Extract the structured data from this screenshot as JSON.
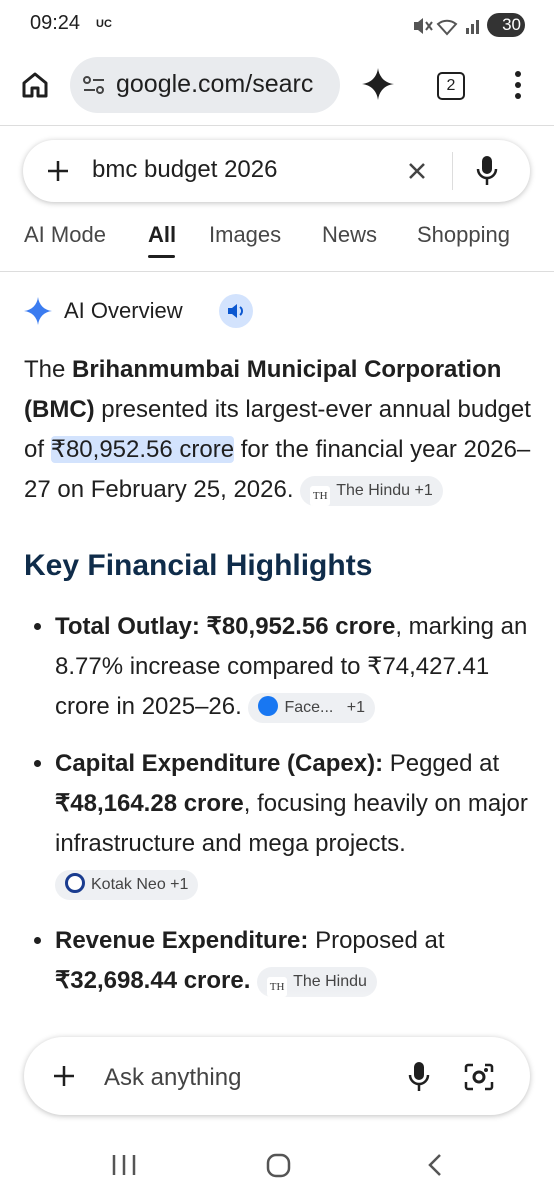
{
  "status_bar": {
    "time": "09:24",
    "carrier": "UC",
    "battery": "30"
  },
  "browser": {
    "url": "google.com/searc",
    "tab_count": "2"
  },
  "search": {
    "query": "bmc budget 2026",
    "tabs": [
      "AI Mode",
      "All",
      "Images",
      "News",
      "Shopping"
    ]
  },
  "ai_overview": {
    "label": "AI Overview",
    "paragraph": [
      "The ",
      "Brihanmumbai Municipal Corporation (BMC)",
      " presented its largest-ever annual budget of ",
      "₹80,952.56 crore",
      " for the financial year 2026–27 on February 25, 2026."
    ],
    "source": {
      "name": "The Hindu",
      "more": "+1"
    },
    "heading": "Key Financial Highlights",
    "bullets": [
      {
        "parts": [
          "Total Outlay: ₹80,952.56 crore",
          ", marking an 8.77% increase compared to ₹74,427.41 crore in 2025–26."
        ],
        "source": {
          "name": "Face...",
          "more": "+1"
        }
      },
      {
        "parts": [
          "Capital Expenditure (Capex):",
          " Pegged at ",
          "₹48,164.28 crore",
          ", focusing heavily on major infrastructure and mega projects."
        ],
        "source": {
          "name": "Kotak Neo",
          "more": "+1"
        }
      },
      {
        "parts": [
          "Revenue Expenditure:",
          " Proposed at ",
          "₹32,698.44 crore."
        ],
        "source": {
          "name": "The Hindu"
        }
      }
    ]
  },
  "ask_bar": {
    "placeholder": "Ask anything"
  }
}
